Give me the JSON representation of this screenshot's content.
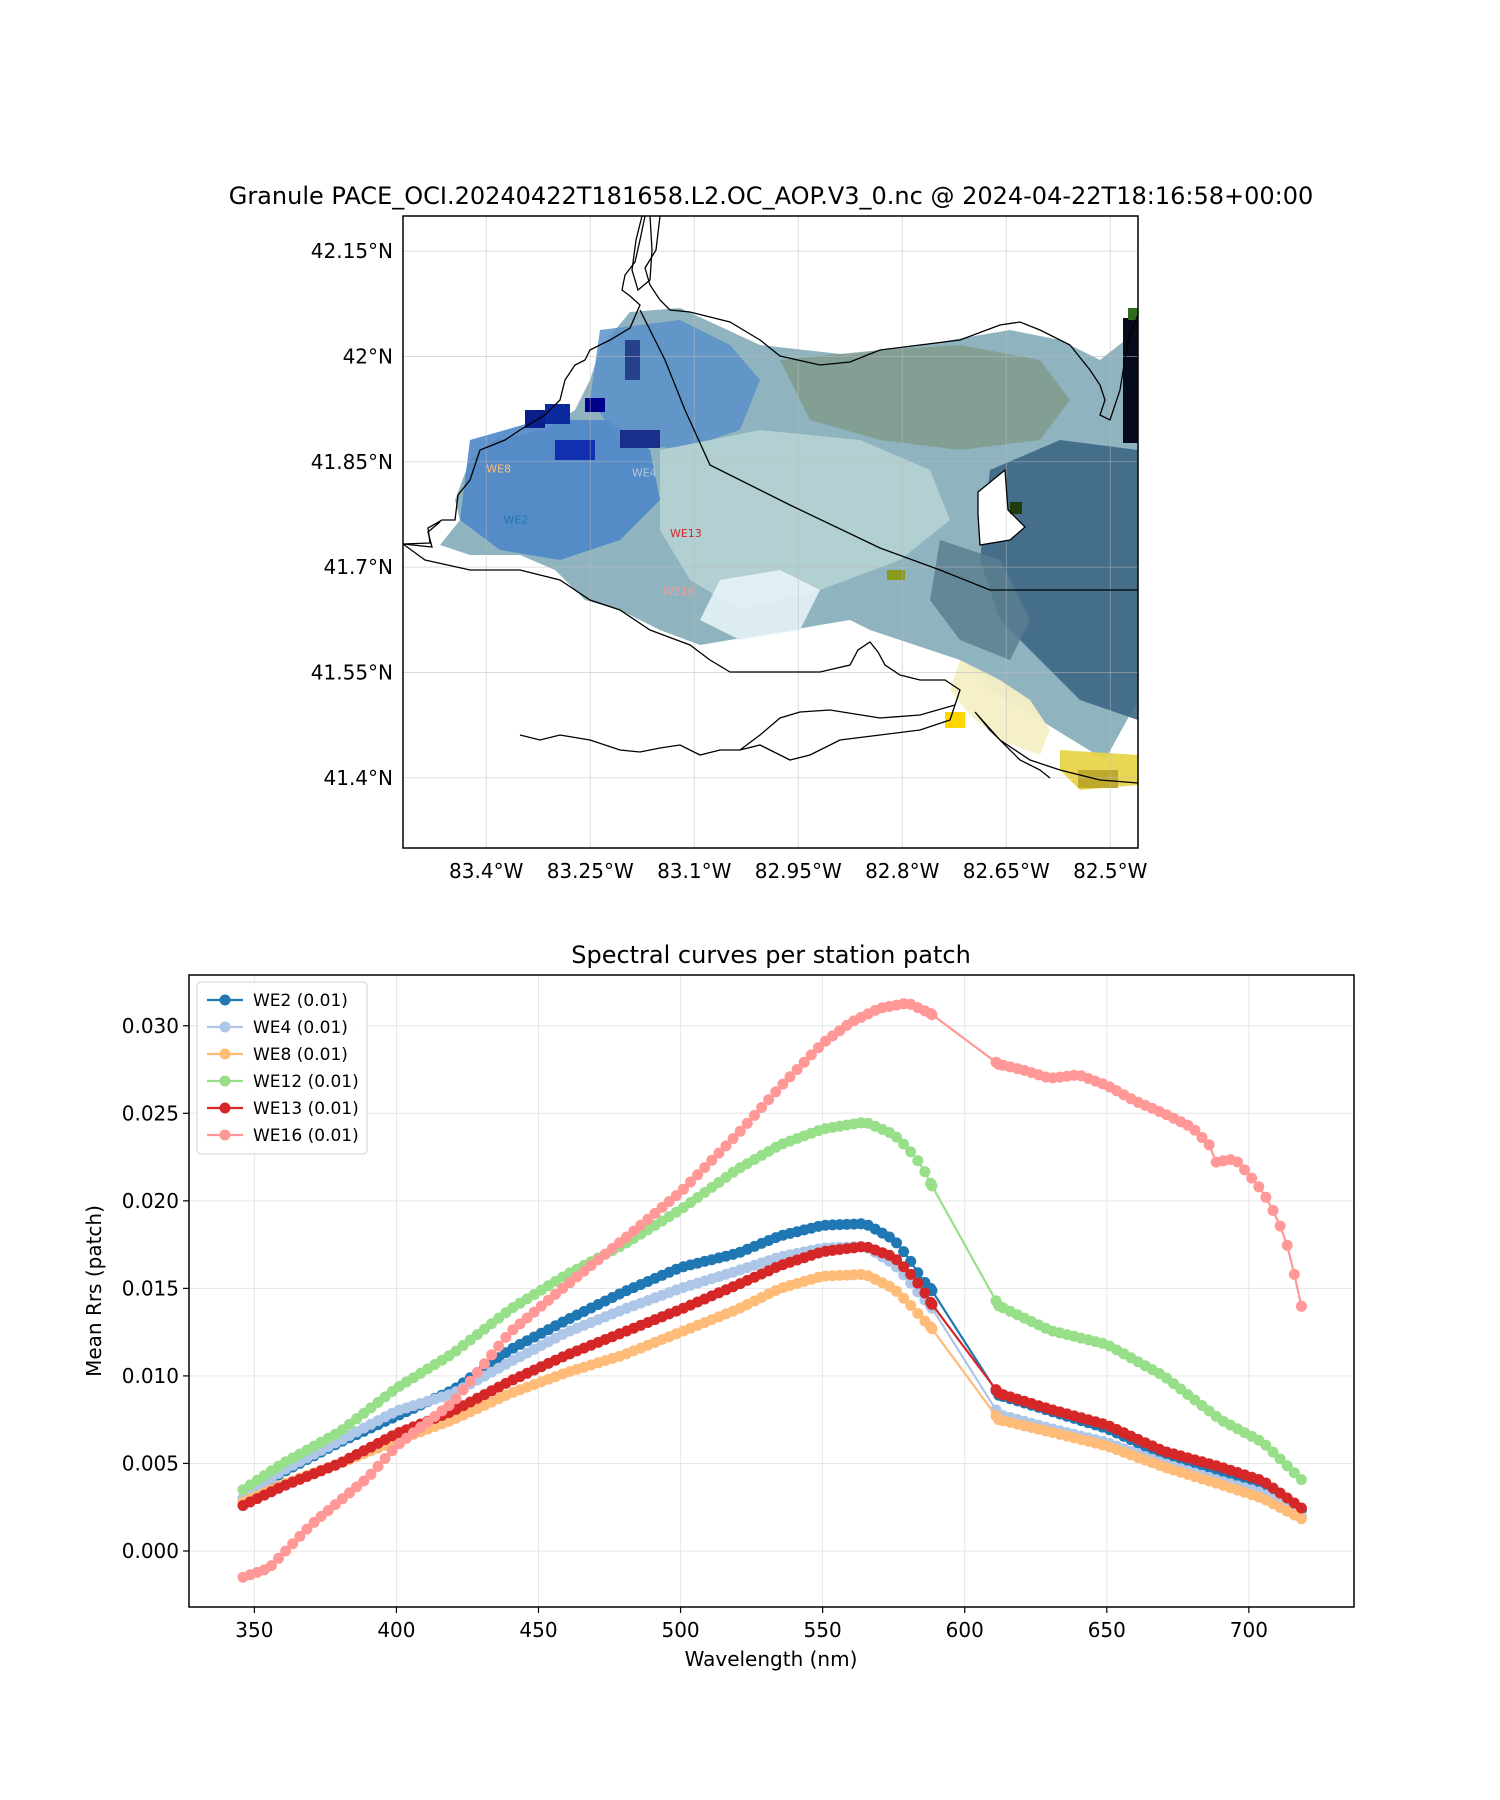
{
  "chart_data": [
    {
      "type": "map",
      "title": "Granule PACE_OCI.20240422T181658.L2.OC_AOP.V3_0.nc @ 2024-04-22T18:16:58+00:00",
      "xlim": [
        -83.52,
        -82.46
      ],
      "ylim": [
        41.3,
        42.2
      ],
      "x_ticks": [
        -83.4,
        -83.25,
        -83.1,
        -82.95,
        -82.8,
        -82.65,
        -82.5
      ],
      "x_tick_labels": [
        "83.4°W",
        "83.25°W",
        "83.1°W",
        "82.95°W",
        "82.8°W",
        "82.65°W",
        "82.5°W"
      ],
      "y_ticks": [
        42.15,
        42.0,
        41.85,
        41.7,
        41.55,
        41.4
      ],
      "y_tick_labels": [
        "42.15°N",
        "42°N",
        "41.85°N",
        "41.7°N",
        "41.55°N",
        "41.4°N"
      ],
      "grid": true,
      "stations": [
        {
          "name": "WE8",
          "lon": -83.4,
          "lat": 41.835,
          "color": "#ffbb78"
        },
        {
          "name": "WE4",
          "lon": -83.19,
          "lat": 41.829,
          "color": "#aec7e8"
        },
        {
          "name": "WE2",
          "lon": -83.375,
          "lat": 41.762,
          "color": "#1f77b4"
        },
        {
          "name": "WE13",
          "lon": -83.135,
          "lat": 41.743,
          "color": "#d62728"
        },
        {
          "name": "WE16",
          "lon": -83.145,
          "lat": 41.66,
          "color": "#ff9896"
        }
      ]
    },
    {
      "type": "line",
      "title": "Spectral curves per station patch",
      "xlabel": "Wavelength (nm)",
      "ylabel": "Mean Rrs (patch)",
      "xlim": [
        327,
        737
      ],
      "ylim": [
        -0.0032,
        0.0329
      ],
      "x_ticks": [
        350,
        400,
        450,
        500,
        550,
        600,
        650,
        700
      ],
      "y_ticks": [
        0.0,
        0.005,
        0.01,
        0.015,
        0.02,
        0.025,
        0.03
      ],
      "y_tick_labels": [
        "0.000",
        "0.005",
        "0.010",
        "0.015",
        "0.020",
        "0.025",
        "0.030"
      ],
      "grid": true,
      "legend_position": "upper-left",
      "series": [
        {
          "name": "WE2 (0.01)",
          "color": "#1f77b4",
          "points": [
            [
              346,
              0.003
            ],
            [
              360,
              0.0045
            ],
            [
              380,
              0.0062
            ],
            [
              400,
              0.0077
            ],
            [
              420,
              0.0092
            ],
            [
              440,
              0.0115
            ],
            [
              460,
              0.0132
            ],
            [
              480,
              0.0148
            ],
            [
              500,
              0.0162
            ],
            [
              520,
              0.017
            ],
            [
              535,
              0.018
            ],
            [
              550,
              0.0186
            ],
            [
              565,
              0.0187
            ],
            [
              575,
              0.0178
            ],
            [
              580,
              0.0168
            ],
            [
              585,
              0.0155
            ],
            [
              588,
              0.015
            ],
            [
              612,
              0.0089
            ],
            [
              630,
              0.008
            ],
            [
              650,
              0.007
            ],
            [
              670,
              0.0055
            ],
            [
              690,
              0.0045
            ],
            [
              705,
              0.0038
            ],
            [
              719,
              0.0023
            ]
          ]
        },
        {
          "name": "WE4 (0.01)",
          "color": "#aec7e8",
          "points": [
            [
              346,
              0.003
            ],
            [
              360,
              0.0046
            ],
            [
              380,
              0.0063
            ],
            [
              400,
              0.008
            ],
            [
              420,
              0.009
            ],
            [
              440,
              0.0108
            ],
            [
              460,
              0.0125
            ],
            [
              480,
              0.0138
            ],
            [
              500,
              0.015
            ],
            [
              520,
              0.016
            ],
            [
              535,
              0.0168
            ],
            [
              550,
              0.0173
            ],
            [
              565,
              0.0174
            ],
            [
              575,
              0.0164
            ],
            [
              580,
              0.0155
            ],
            [
              585,
              0.0145
            ],
            [
              588,
              0.014
            ],
            [
              612,
              0.0078
            ],
            [
              630,
              0.007
            ],
            [
              650,
              0.0062
            ],
            [
              670,
              0.005
            ],
            [
              690,
              0.004
            ],
            [
              705,
              0.0033
            ],
            [
              719,
              0.0019
            ]
          ]
        },
        {
          "name": "WE8 (0.01)",
          "color": "#ffbb78",
          "points": [
            [
              346,
              0.0028
            ],
            [
              360,
              0.0038
            ],
            [
              380,
              0.005
            ],
            [
              400,
              0.0063
            ],
            [
              420,
              0.0075
            ],
            [
              440,
              0.009
            ],
            [
              460,
              0.0102
            ],
            [
              480,
              0.0112
            ],
            [
              500,
              0.0125
            ],
            [
              520,
              0.0138
            ],
            [
              535,
              0.015
            ],
            [
              550,
              0.0157
            ],
            [
              565,
              0.0158
            ],
            [
              575,
              0.015
            ],
            [
              580,
              0.0142
            ],
            [
              585,
              0.0133
            ],
            [
              588,
              0.0128
            ],
            [
              612,
              0.0075
            ],
            [
              630,
              0.0068
            ],
            [
              650,
              0.006
            ],
            [
              670,
              0.0048
            ],
            [
              690,
              0.0038
            ],
            [
              705,
              0.003
            ],
            [
              719,
              0.0018
            ]
          ]
        },
        {
          "name": "WE12 (0.01)",
          "color": "#98df8a",
          "points": [
            [
              346,
              0.0035
            ],
            [
              360,
              0.005
            ],
            [
              380,
              0.0068
            ],
            [
              400,
              0.0093
            ],
            [
              420,
              0.0113
            ],
            [
              440,
              0.0138
            ],
            [
              460,
              0.0158
            ],
            [
              480,
              0.0175
            ],
            [
              500,
              0.0195
            ],
            [
              520,
              0.0218
            ],
            [
              535,
              0.0232
            ],
            [
              550,
              0.0241
            ],
            [
              565,
              0.0245
            ],
            [
              575,
              0.0238
            ],
            [
              580,
              0.023
            ],
            [
              585,
              0.022
            ],
            [
              588,
              0.021
            ],
            [
              612,
              0.014
            ],
            [
              630,
              0.0126
            ],
            [
              650,
              0.0118
            ],
            [
              670,
              0.01
            ],
            [
              690,
              0.0075
            ],
            [
              705,
              0.0062
            ],
            [
              719,
              0.004
            ]
          ]
        },
        {
          "name": "WE13 (0.01)",
          "color": "#d62728",
          "points": [
            [
              346,
              0.0026
            ],
            [
              360,
              0.0037
            ],
            [
              380,
              0.005
            ],
            [
              400,
              0.0067
            ],
            [
              420,
              0.008
            ],
            [
              440,
              0.0097
            ],
            [
              460,
              0.0112
            ],
            [
              480,
              0.0125
            ],
            [
              500,
              0.0138
            ],
            [
              520,
              0.0152
            ],
            [
              535,
              0.0163
            ],
            [
              550,
              0.0171
            ],
            [
              565,
              0.0174
            ],
            [
              575,
              0.0168
            ],
            [
              580,
              0.016
            ],
            [
              585,
              0.015
            ],
            [
              588,
              0.0142
            ],
            [
              612,
              0.009
            ],
            [
              630,
              0.0081
            ],
            [
              650,
              0.0072
            ],
            [
              670,
              0.0057
            ],
            [
              690,
              0.0048
            ],
            [
              705,
              0.004
            ],
            [
              719,
              0.0024
            ]
          ]
        },
        {
          "name": "WE16 (0.01)",
          "color": "#ff9896",
          "points": [
            [
              346,
              -0.0015
            ],
            [
              355,
              -0.001
            ],
            [
              370,
              0.0015
            ],
            [
              390,
              0.0042
            ],
            [
              400,
              0.006
            ],
            [
              420,
              0.0085
            ],
            [
              440,
              0.0125
            ],
            [
              460,
              0.0152
            ],
            [
              480,
              0.0178
            ],
            [
              500,
              0.0205
            ],
            [
              520,
              0.0238
            ],
            [
              535,
              0.0265
            ],
            [
              550,
              0.029
            ],
            [
              560,
              0.0302
            ],
            [
              570,
              0.031
            ],
            [
              580,
              0.0313
            ],
            [
              588,
              0.0307
            ],
            [
              612,
              0.0278
            ],
            [
              620,
              0.0275
            ],
            [
              630,
              0.027
            ],
            [
              640,
              0.0272
            ],
            [
              650,
              0.0266
            ],
            [
              660,
              0.0257
            ],
            [
              670,
              0.025
            ],
            [
              680,
              0.0242
            ],
            [
              686,
              0.0232
            ],
            [
              688,
              0.0222
            ],
            [
              695,
              0.0224
            ],
            [
              700,
              0.0215
            ],
            [
              705,
              0.0205
            ],
            [
              710,
              0.019
            ],
            [
              715,
              0.0168
            ],
            [
              717,
              0.0148
            ],
            [
              719,
              0.0137
            ]
          ]
        }
      ]
    }
  ]
}
